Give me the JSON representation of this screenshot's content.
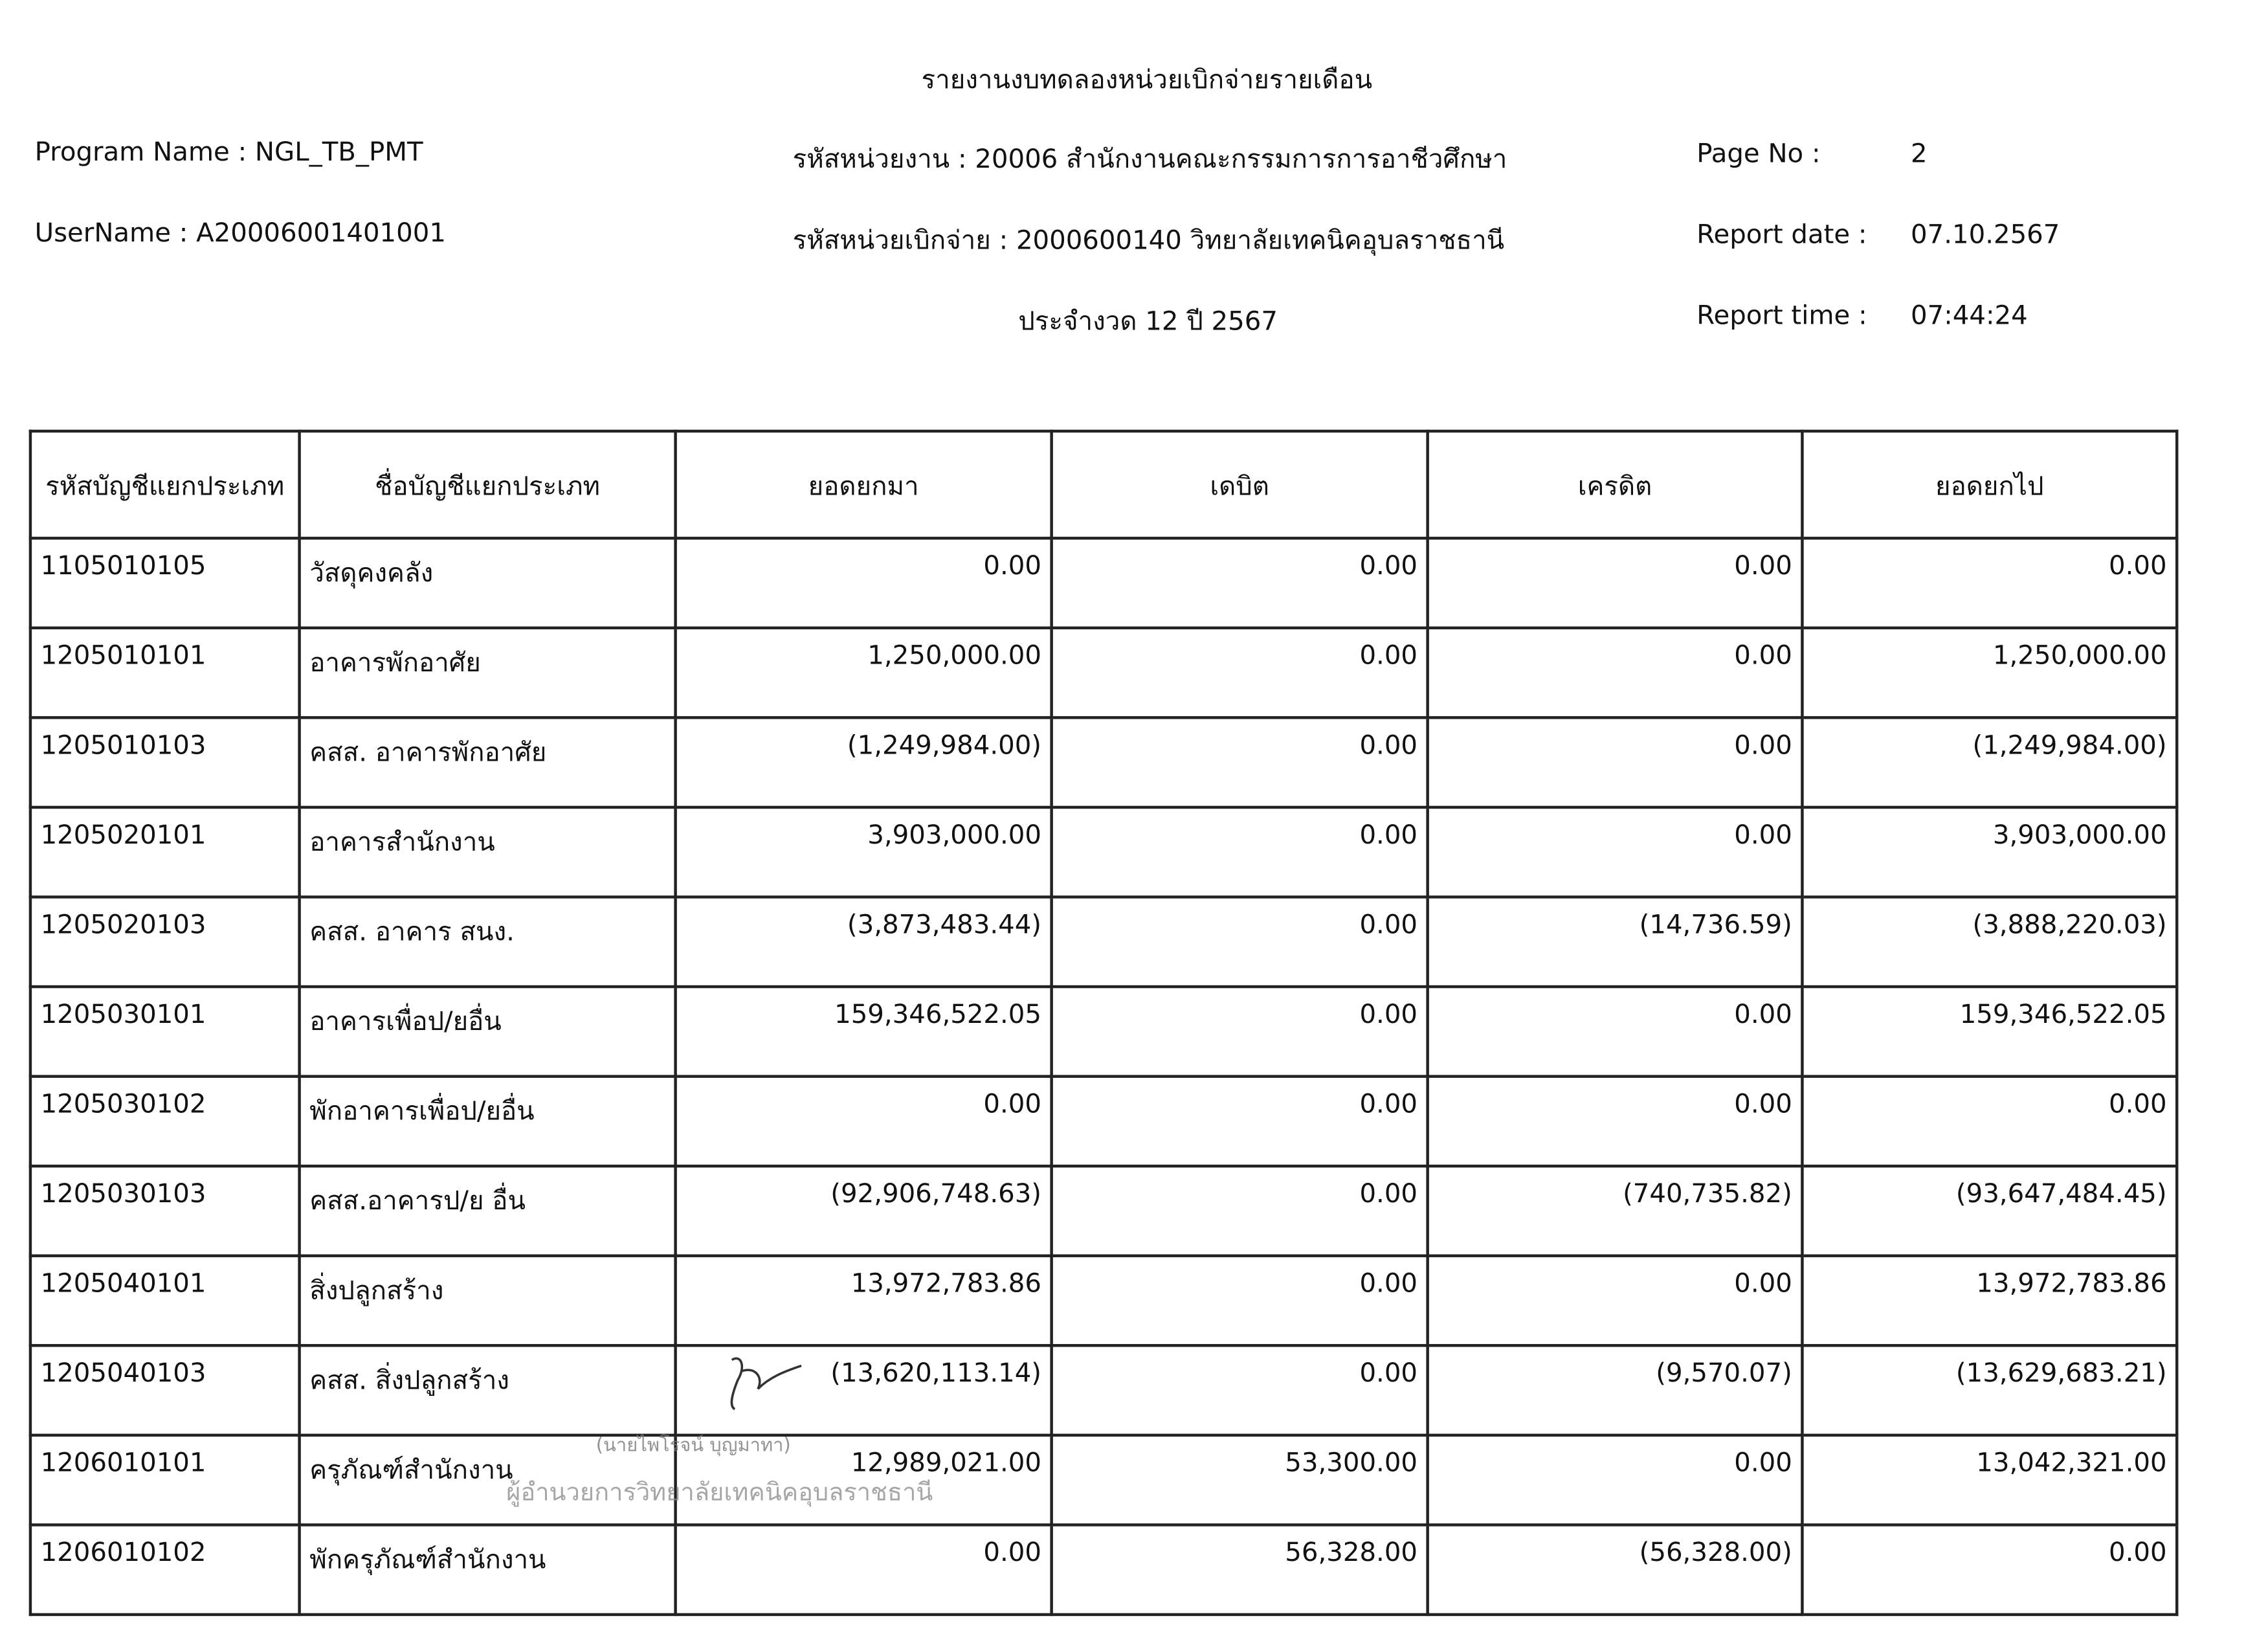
{
  "report": {
    "title": "รายงานงบทดลองหน่วยเบิกจ่ายรายเดือน",
    "program_name": "Program Name : NGL_TB_PMT",
    "username": "UserName : A20006001401001",
    "agency": "รหัสหน่วยงาน : 20006 สำนักงานคณะกรรมการการอาชีวศึกษา",
    "disbursing_unit": "รหัสหน่วยเบิกจ่าย : 2000600140 วิทยาลัยเทคนิคอุบลราชธานี",
    "period": "ประจำงวด 12 ปี 2567",
    "page_no_label": "Page No :",
    "page_no": "2",
    "report_date_label": "Report date :",
    "report_date": "07.10.2567",
    "report_time_label": "Report time :",
    "report_time": "07:44:24"
  },
  "table": {
    "headers": [
      "รหัสบัญชีแยกประเภท",
      "ชื่อบัญชีแยกประเภท",
      "ยอดยกมา",
      "เดบิต",
      "เครดิต",
      "ยอดยกไป"
    ],
    "rows": [
      [
        "1105010105",
        "วัสดุคงคลัง",
        "0.00",
        "0.00",
        "0.00",
        "0.00"
      ],
      [
        "1205010101",
        "อาคารพักอาศัย",
        "1,250,000.00",
        "0.00",
        "0.00",
        "1,250,000.00"
      ],
      [
        "1205010103",
        "คสส. อาคารพักอาศัย",
        "(1,249,984.00)",
        "0.00",
        "0.00",
        "(1,249,984.00)"
      ],
      [
        "1205020101",
        "อาคารสำนักงาน",
        "3,903,000.00",
        "0.00",
        "0.00",
        "3,903,000.00"
      ],
      [
        "1205020103",
        "คสส. อาคาร สนง.",
        "(3,873,483.44)",
        "0.00",
        "(14,736.59)",
        "(3,888,220.03)"
      ],
      [
        "1205030101",
        "อาคารเพื่อป/ยอื่น",
        "159,346,522.05",
        "0.00",
        "0.00",
        "159,346,522.05"
      ],
      [
        "1205030102",
        "พักอาคารเพื่อป/ยอื่น",
        "0.00",
        "0.00",
        "0.00",
        "0.00"
      ],
      [
        "1205030103",
        "คสส.อาคารป/ย อื่น",
        "(92,906,748.63)",
        "0.00",
        "(740,735.82)",
        "(93,647,484.45)"
      ],
      [
        "1205040101",
        "สิ่งปลูกสร้าง",
        "13,972,783.86",
        "0.00",
        "0.00",
        "13,972,783.86"
      ],
      [
        "1205040103",
        "คสส. สิ่งปลูกสร้าง",
        "(13,620,113.14)",
        "0.00",
        "(9,570.07)",
        "(13,629,683.21)"
      ],
      [
        "1206010101",
        "ครุภัณฑ์สำนักงาน",
        "12,989,021.00",
        "53,300.00",
        "0.00",
        "13,042,321.00"
      ],
      [
        "1206010102",
        "พักครุภัณฑ์สำนักงาน",
        "0.00",
        "56,328.00",
        "(56,328.00)",
        "0.00"
      ]
    ]
  },
  "stamp": {
    "name_line": "(นายไพโรจน์ บุญมาทา)",
    "position_line": "ผู้อำนวยการวิทยาลัยเทคนิคอุบลราชธานี"
  }
}
